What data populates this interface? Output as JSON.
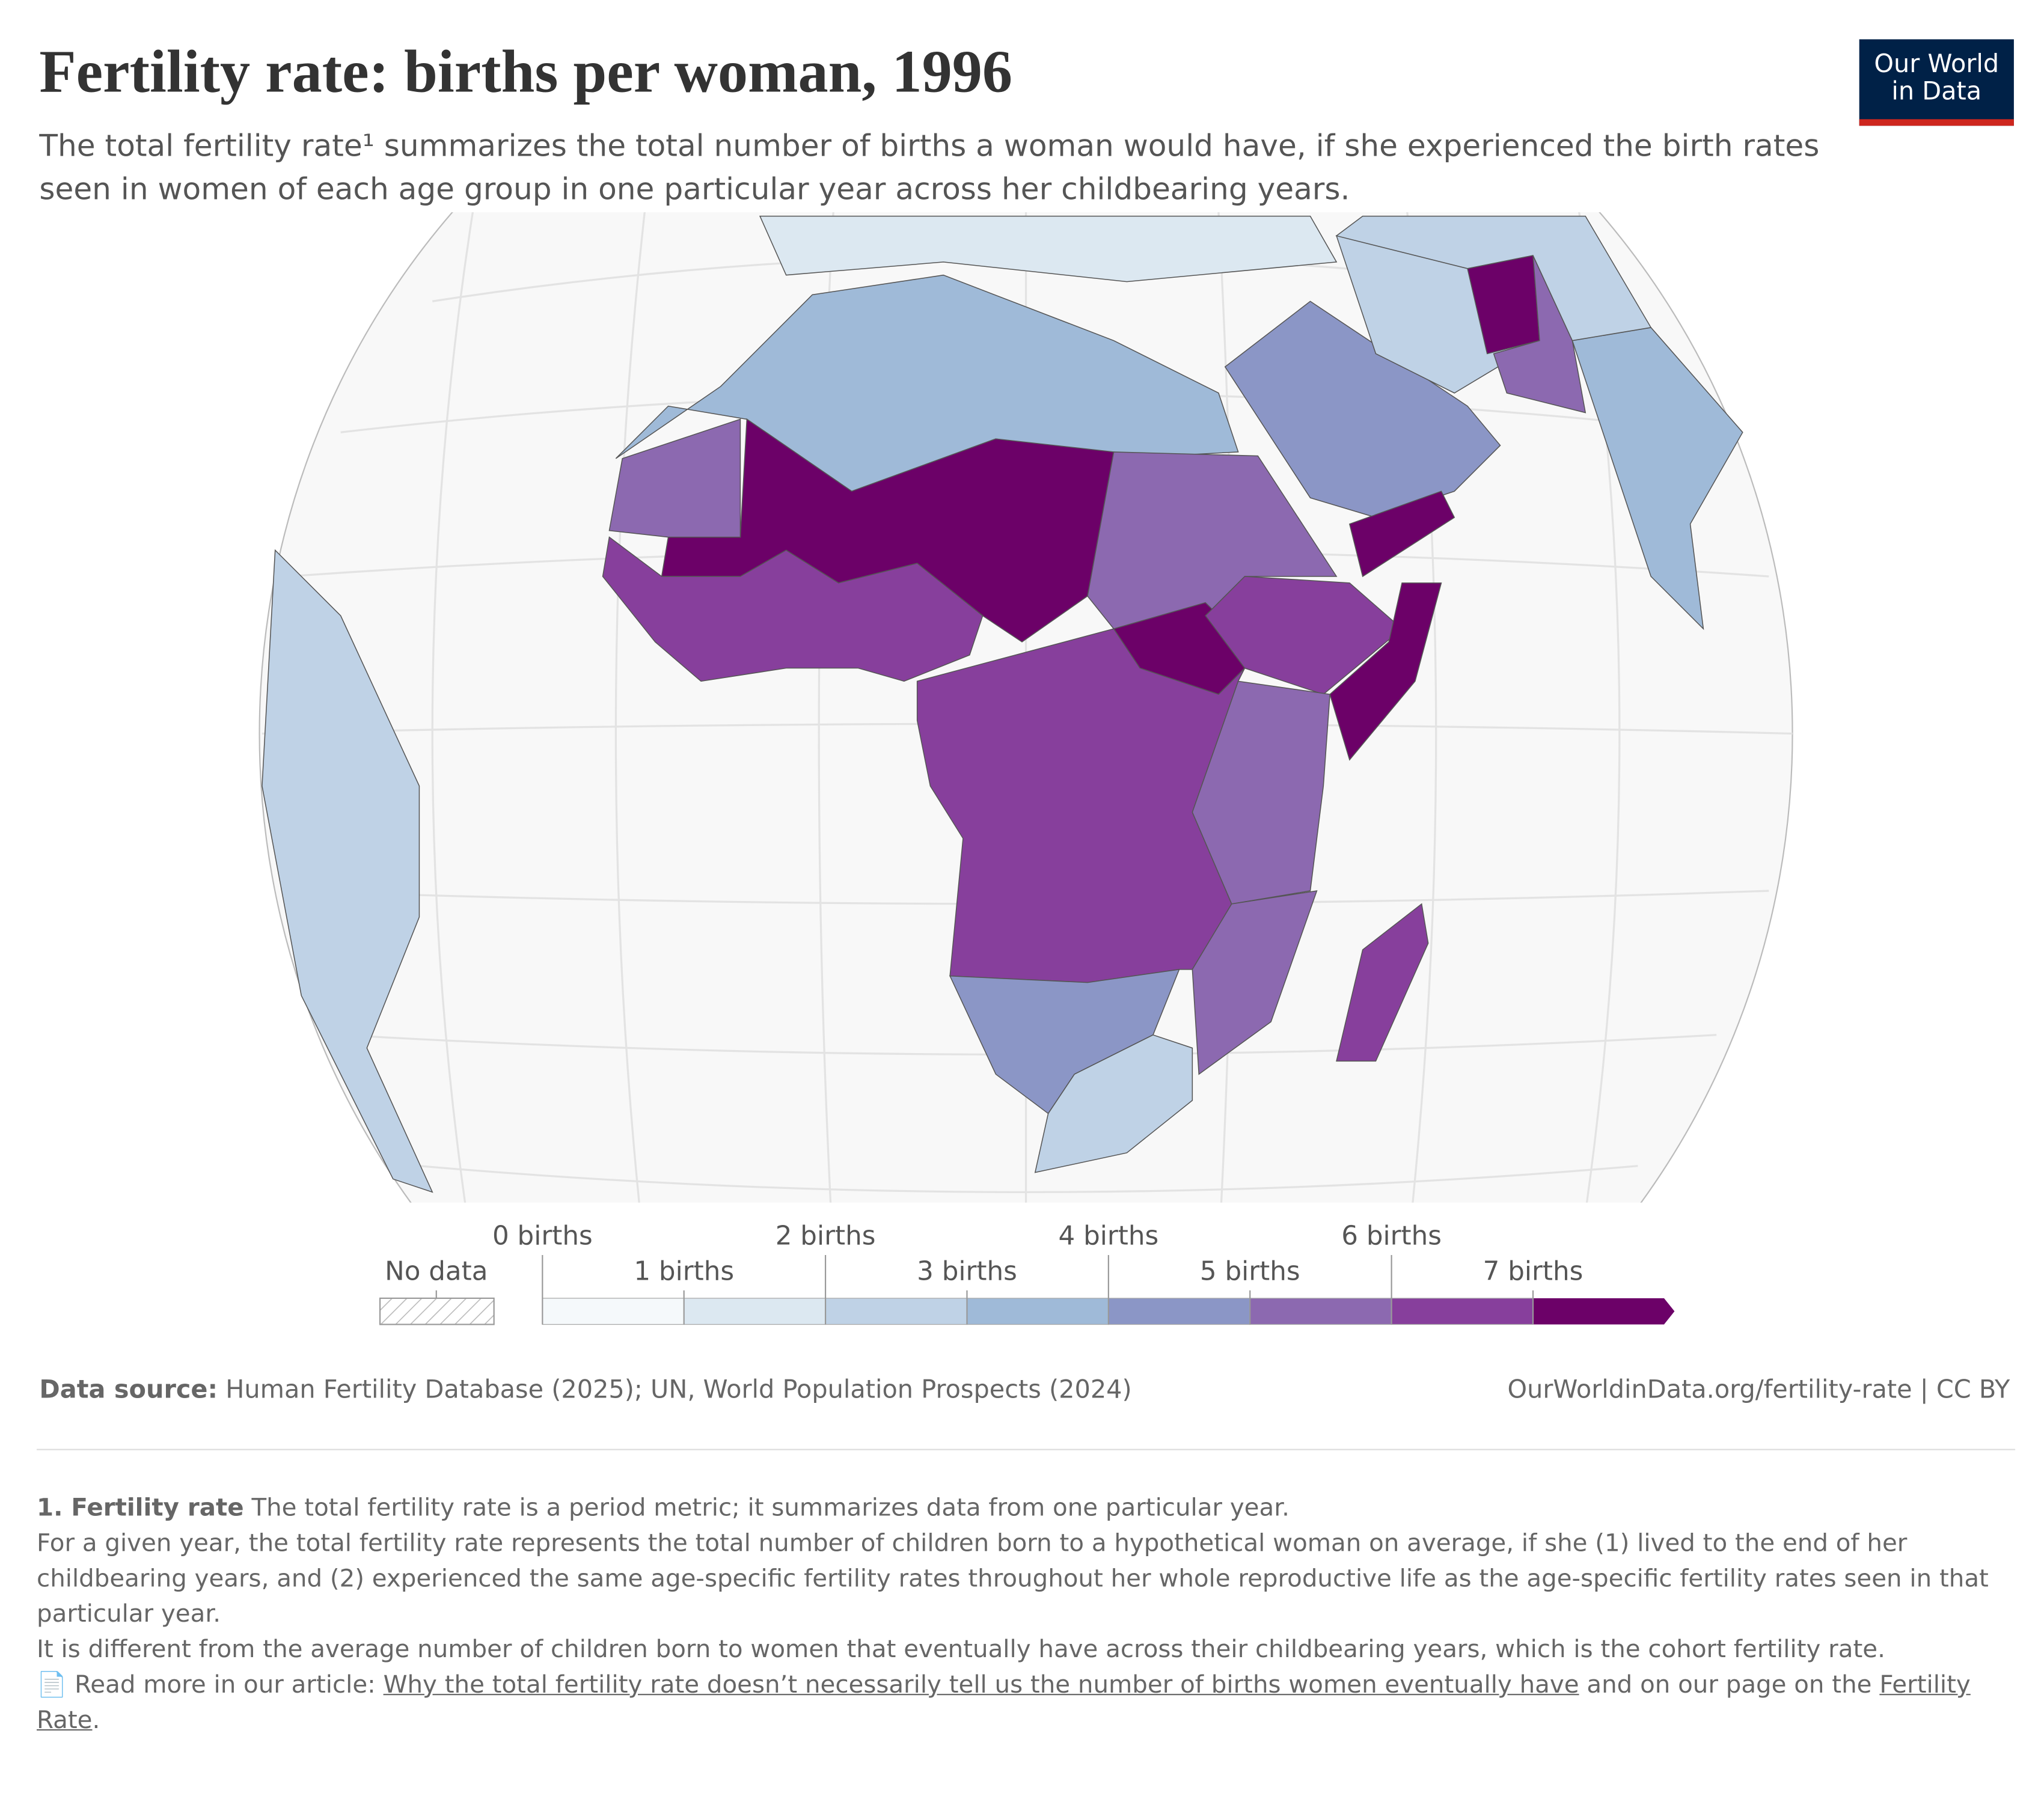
{
  "chart_data": {
    "type": "choropleth",
    "title": "Fertility rate: births per woman, 1996",
    "subtitle": "The total fertility rate¹ summarizes the total number of births a woman would have, if she experienced the birth rates seen in women of each age group in one particular year across her childbearing years.",
    "logo": [
      "Our World",
      "in Data"
    ],
    "legend": {
      "no_data_label": "No data",
      "ticks": [
        {
          "value": 0,
          "label": "0 births"
        },
        {
          "value": 1,
          "label": "1 births"
        },
        {
          "value": 2,
          "label": "2 births"
        },
        {
          "value": 3,
          "label": "3 births"
        },
        {
          "value": 4,
          "label": "4 births"
        },
        {
          "value": 5,
          "label": "5 births"
        },
        {
          "value": 6,
          "label": "6 births"
        },
        {
          "value": 7,
          "label": "7 births"
        }
      ],
      "colors": [
        "#f5f9fb",
        "#dce8f1",
        "#bfd2e6",
        "#9fbad8",
        "#8b96c6",
        "#8c69b0",
        "#873f9c",
        "#6c0168"
      ]
    },
    "region_values": [
      3.2,
      7.2,
      6.2,
      5.3,
      5.4,
      7.1,
      6.8,
      7.6,
      6.6,
      5.3,
      5.6,
      4.2,
      2.9,
      6.0,
      4.5,
      7.0,
      2.6,
      7.6,
      5.4,
      3.3,
      1.5,
      2.8,
      2.5
    ],
    "source_label": "Data source:",
    "source": "Human Fertility Database (2025); UN, World Population Prospects (2024)",
    "url": "OurWorldinData.org/fertility-rate | CC BY",
    "footnote": {
      "heading": "1. Fertility rate",
      "lead": "The total fertility rate is a period metric; it summarizes data from one particular year.",
      "paragraphs": [
        "For a given year, the total fertility rate represents the total number of children born to a hypothetical woman on average, if she (1) lived to the end of her childbearing years, and (2) experienced the same age-specific fertility rates throughout her whole reproductive life as the age-specific fertility rates seen in that particular year.",
        "It is different from the average number of children born to women that eventually have across their childbearing years, which is the cohort fertility rate."
      ],
      "read_more": {
        "icon": "📄",
        "prefix": "Read more in our article:",
        "link1": "Why the total fertility rate doesn’t necessarily tell us the number of births women eventually have",
        "middle": "and on our page on the",
        "link2": "Fertility Rate",
        "end": "."
      }
    }
  }
}
